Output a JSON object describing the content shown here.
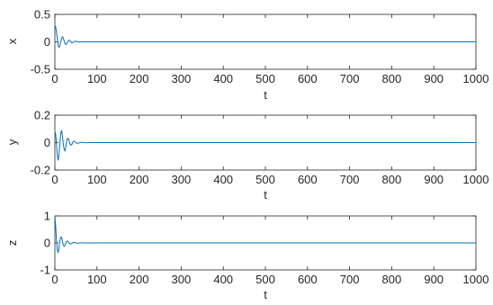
{
  "chart_data": [
    {
      "type": "line",
      "xlabel": "t",
      "ylabel": "x",
      "xlim": [
        0,
        1000
      ],
      "ylim": [
        -0.5,
        0.5
      ],
      "xticks": [
        0,
        100,
        200,
        300,
        400,
        500,
        600,
        700,
        800,
        900,
        1000
      ],
      "yticks": [
        -0.5,
        0,
        0.5
      ],
      "xtick_labels": [
        "0",
        "100",
        "200",
        "300",
        "400",
        "500",
        "600",
        "700",
        "800",
        "900",
        "1000"
      ],
      "ytick_labels": [
        "-0.5",
        "0",
        "0.5"
      ],
      "grid": false,
      "color": "#0072BD",
      "series": [
        {
          "x": [
            0,
            2,
            4,
            6,
            8,
            10,
            12,
            14,
            16,
            18,
            20,
            22,
            24,
            26,
            28,
            30,
            32,
            34,
            36,
            38,
            40,
            44,
            48,
            52,
            56,
            60,
            66,
            72,
            80,
            90,
            100,
            110,
            120,
            150,
            200,
            300,
            400,
            500,
            600,
            700,
            800,
            900,
            1000
          ],
          "y": [
            0.3,
            0.27,
            0.17,
            0.04,
            -0.07,
            -0.1,
            -0.06,
            0.0,
            0.06,
            0.09,
            0.07,
            0.02,
            -0.03,
            -0.05,
            -0.04,
            -0.01,
            0.02,
            0.03,
            0.02,
            0.0,
            -0.015,
            -0.01,
            0.01,
            0.008,
            -0.005,
            0.0,
            0.003,
            0.0,
            -0.001,
            0.0,
            0.0,
            0.0,
            0.0,
            0.0,
            0.0,
            0.0,
            0.0,
            0.0,
            0.0,
            0.0,
            0.0,
            0.0,
            0.0
          ]
        }
      ]
    },
    {
      "type": "line",
      "xlabel": "t",
      "ylabel": "y",
      "xlim": [
        0,
        1000
      ],
      "ylim": [
        -0.2,
        0.2
      ],
      "xticks": [
        0,
        100,
        200,
        300,
        400,
        500,
        600,
        700,
        800,
        900,
        1000
      ],
      "yticks": [
        -0.2,
        0,
        0.2
      ],
      "xtick_labels": [
        "0",
        "100",
        "200",
        "300",
        "400",
        "500",
        "600",
        "700",
        "800",
        "900",
        "1000"
      ],
      "ytick_labels": [
        "-0.2",
        "0",
        "0.2"
      ],
      "grid": false,
      "color": "#0072BD",
      "series": [
        {
          "x": [
            0,
            2,
            4,
            6,
            8,
            10,
            12,
            14,
            16,
            18,
            20,
            22,
            24,
            26,
            28,
            30,
            32,
            34,
            36,
            38,
            40,
            44,
            48,
            52,
            56,
            60,
            66,
            72,
            80,
            90,
            100,
            110,
            120,
            150,
            200,
            300,
            400,
            500,
            600,
            700,
            800,
            900,
            1000
          ],
          "y": [
            0.08,
            0.06,
            -0.02,
            -0.1,
            -0.13,
            -0.08,
            0.0,
            0.07,
            0.09,
            0.05,
            -0.01,
            -0.05,
            -0.06,
            -0.03,
            0.01,
            0.03,
            0.03,
            0.01,
            -0.01,
            -0.02,
            -0.015,
            0.01,
            0.008,
            -0.005,
            -0.004,
            0.002,
            0.002,
            -0.001,
            0.0,
            0.0,
            0.0,
            0.0,
            0.0,
            0.0,
            0.0,
            0.0,
            0.0,
            0.0,
            0.0,
            0.0,
            0.0,
            0.0,
            0.0
          ]
        }
      ]
    },
    {
      "type": "line",
      "xlabel": "t",
      "ylabel": "z",
      "xlim": [
        0,
        1000
      ],
      "ylim": [
        -1,
        1
      ],
      "xticks": [
        0,
        100,
        200,
        300,
        400,
        500,
        600,
        700,
        800,
        900,
        1000
      ],
      "yticks": [
        -1,
        0,
        1
      ],
      "xtick_labels": [
        "0",
        "100",
        "200",
        "300",
        "400",
        "500",
        "600",
        "700",
        "800",
        "900",
        "1000"
      ],
      "ytick_labels": [
        "-1",
        "0",
        "1"
      ],
      "grid": false,
      "color": "#0072BD",
      "series": [
        {
          "x": [
            0,
            2,
            4,
            6,
            8,
            10,
            12,
            14,
            16,
            18,
            20,
            22,
            24,
            26,
            28,
            30,
            32,
            34,
            36,
            38,
            40,
            44,
            48,
            52,
            56,
            60,
            66,
            72,
            80,
            90,
            100,
            110,
            120,
            150,
            200,
            300,
            400,
            500,
            600,
            700,
            800,
            900,
            1000
          ],
          "y": [
            1.0,
            0.6,
            0.05,
            -0.3,
            -0.35,
            -0.15,
            0.08,
            0.22,
            0.2,
            0.06,
            -0.08,
            -0.13,
            -0.09,
            -0.01,
            0.05,
            0.07,
            0.04,
            0.0,
            -0.03,
            -0.035,
            -0.02,
            0.02,
            0.015,
            -0.01,
            -0.01,
            0.004,
            0.005,
            -0.002,
            0.0,
            0.0,
            0.0,
            0.0,
            0.0,
            0.0,
            0.0,
            0.0,
            0.0,
            0.0,
            0.0,
            0.0,
            0.0,
            0.0,
            0.0
          ]
        }
      ]
    }
  ]
}
